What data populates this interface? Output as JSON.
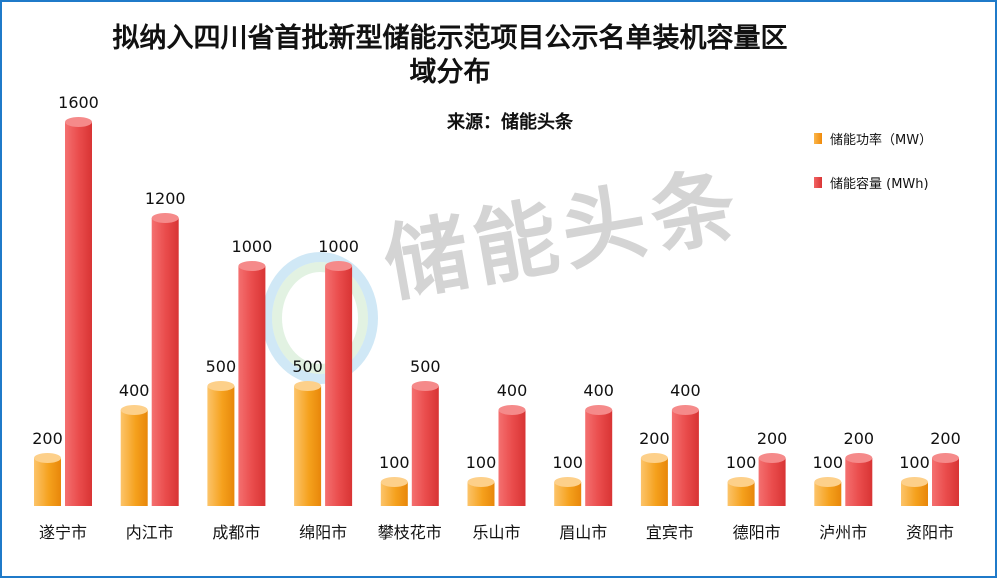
{
  "chart_data": {
    "type": "bar",
    "title": "拟纳入四川省首批新型储能示范项目公示名单装机容量区域分布",
    "subtitle": "来源：储能头条",
    "watermark": "储能头条",
    "categories": [
      "遂宁市",
      "内江市",
      "成都市",
      "绵阳市",
      "攀枝花市",
      "乐山市",
      "眉山市",
      "宜宾市",
      "德阳市",
      "泸州市",
      "资阳市"
    ],
    "series": [
      {
        "name": "储能功率（MW）",
        "values": [
          200,
          400,
          500,
          500,
          100,
          100,
          100,
          200,
          100,
          100,
          100
        ],
        "color": "#f7a21b"
      },
      {
        "name": "储能容量 (MWh)",
        "values": [
          1600,
          1200,
          1000,
          1000,
          500,
          400,
          400,
          400,
          200,
          200,
          200
        ],
        "color": "#e94b4b"
      }
    ],
    "ylim": [
      0,
      1600
    ],
    "legend_position": "top-right",
    "grid": false
  }
}
